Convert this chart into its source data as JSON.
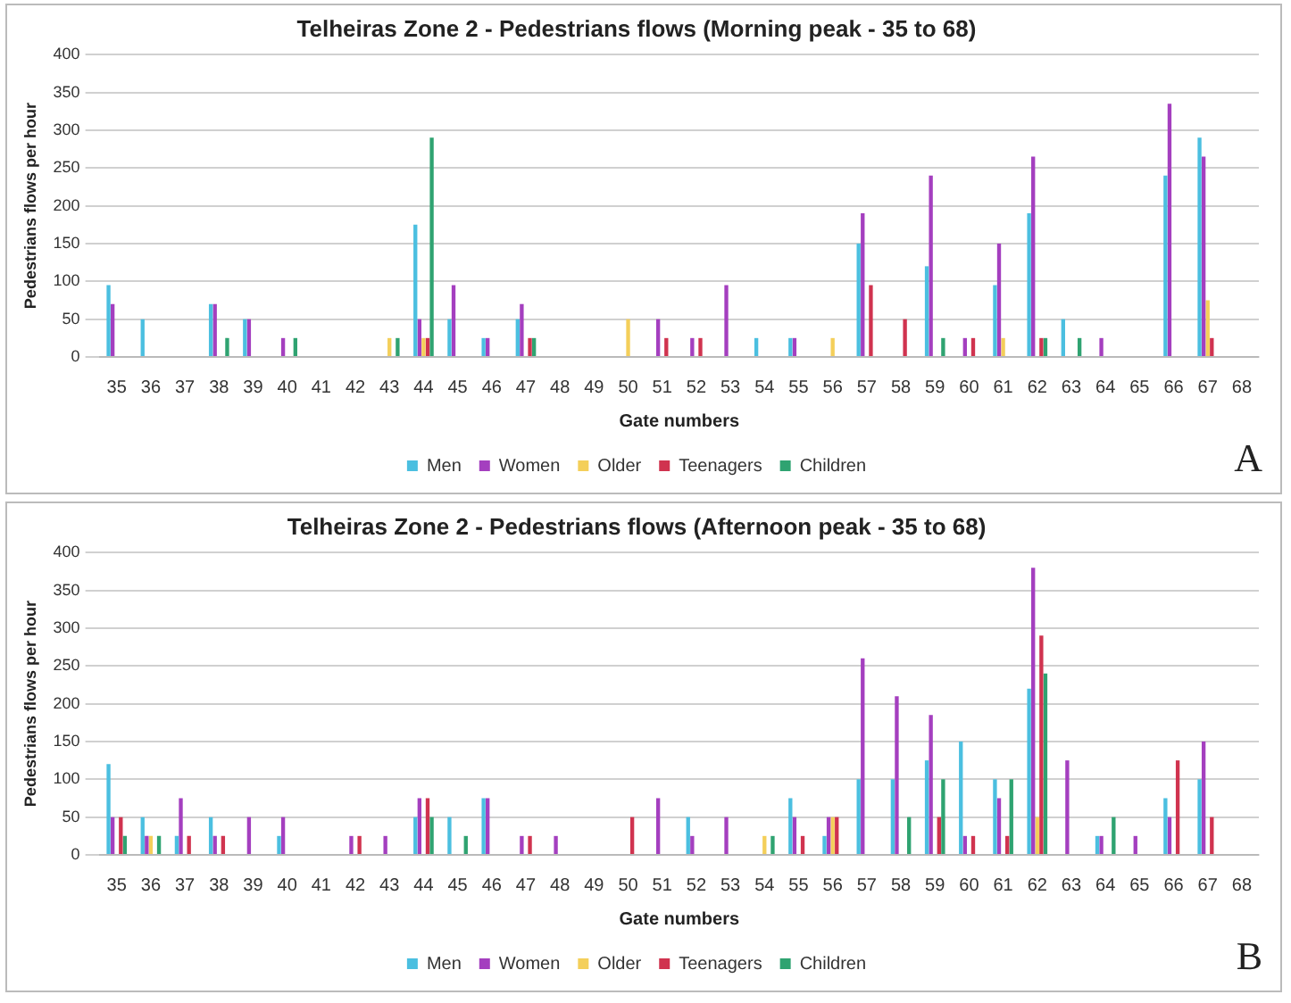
{
  "chart_data": [
    {
      "type": "bar",
      "title": "Telheiras Zone 2 - Pedestrians flows (Morning peak - 35 to 68)",
      "xlabel": "Gate numbers",
      "ylabel": "Pedestrians flows per hour",
      "annotations": [
        "A"
      ],
      "categories": [
        "35",
        "36",
        "37",
        "38",
        "39",
        "40",
        "41",
        "42",
        "43",
        "44",
        "45",
        "46",
        "47",
        "48",
        "49",
        "50",
        "51",
        "52",
        "53",
        "54",
        "55",
        "56",
        "57",
        "58",
        "59",
        "60",
        "61",
        "62",
        "63",
        "64",
        "65",
        "66",
        "67",
        "68"
      ],
      "series": [
        {
          "name": "Men",
          "color": "#4bbfe0",
          "values": [
            95,
            50,
            0,
            70,
            50,
            0,
            0,
            0,
            0,
            175,
            50,
            25,
            50,
            0,
            0,
            0,
            0,
            0,
            0,
            25,
            25,
            0,
            150,
            0,
            120,
            0,
            95,
            190,
            50,
            0,
            0,
            240,
            290,
            0
          ]
        },
        {
          "name": "Women",
          "color": "#a43fbf",
          "values": [
            70,
            0,
            0,
            70,
            50,
            25,
            0,
            0,
            0,
            50,
            95,
            25,
            70,
            0,
            0,
            0,
            50,
            25,
            95,
            0,
            25,
            0,
            190,
            0,
            240,
            25,
            150,
            265,
            0,
            25,
            0,
            335,
            265,
            0
          ]
        },
        {
          "name": "Older",
          "color": "#f4cf5a",
          "values": [
            0,
            0,
            0,
            0,
            0,
            0,
            0,
            0,
            25,
            25,
            0,
            0,
            0,
            0,
            0,
            50,
            0,
            0,
            0,
            0,
            0,
            25,
            0,
            0,
            0,
            0,
            25,
            0,
            0,
            0,
            0,
            0,
            75,
            0
          ]
        },
        {
          "name": "Teenagers",
          "color": "#d0334f",
          "values": [
            0,
            0,
            0,
            0,
            0,
            0,
            0,
            0,
            0,
            25,
            0,
            0,
            25,
            0,
            0,
            0,
            25,
            25,
            0,
            0,
            0,
            0,
            95,
            50,
            0,
            25,
            0,
            25,
            0,
            0,
            0,
            0,
            25,
            0
          ]
        },
        {
          "name": "Children",
          "color": "#2fa371",
          "values": [
            0,
            0,
            0,
            25,
            0,
            25,
            0,
            0,
            25,
            290,
            0,
            0,
            25,
            0,
            0,
            0,
            0,
            0,
            0,
            0,
            0,
            0,
            0,
            0,
            25,
            0,
            0,
            25,
            25,
            0,
            0,
            0,
            0,
            0
          ]
        }
      ],
      "ylim": [
        0,
        400
      ],
      "yticks": [
        0,
        50,
        100,
        150,
        200,
        250,
        300,
        350,
        400
      ],
      "grid": "y",
      "legend": "bottom"
    },
    {
      "type": "bar",
      "title": "Telheiras Zone 2 - Pedestrians flows (Afternoon peak - 35 to 68)",
      "xlabel": "Gate numbers",
      "ylabel": "Pedestrians flows per hour",
      "annotations": [
        "B"
      ],
      "categories": [
        "35",
        "36",
        "37",
        "38",
        "39",
        "40",
        "41",
        "42",
        "43",
        "44",
        "45",
        "46",
        "47",
        "48",
        "49",
        "50",
        "51",
        "52",
        "53",
        "54",
        "55",
        "56",
        "57",
        "58",
        "59",
        "60",
        "61",
        "62",
        "63",
        "64",
        "65",
        "66",
        "67",
        "68"
      ],
      "series": [
        {
          "name": "Men",
          "color": "#4bbfe0",
          "values": [
            120,
            50,
            25,
            50,
            0,
            25,
            0,
            0,
            0,
            50,
            50,
            75,
            0,
            0,
            0,
            0,
            0,
            50,
            0,
            0,
            75,
            25,
            100,
            100,
            125,
            150,
            100,
            220,
            0,
            25,
            0,
            75,
            100,
            0
          ]
        },
        {
          "name": "Women",
          "color": "#a43fbf",
          "values": [
            50,
            25,
            75,
            25,
            50,
            50,
            0,
            25,
            25,
            75,
            0,
            75,
            25,
            25,
            0,
            0,
            75,
            25,
            50,
            0,
            50,
            50,
            260,
            210,
            185,
            25,
            75,
            380,
            125,
            25,
            25,
            50,
            150,
            0
          ]
        },
        {
          "name": "Older",
          "color": "#f4cf5a",
          "values": [
            0,
            25,
            0,
            0,
            0,
            0,
            0,
            0,
            0,
            0,
            0,
            0,
            0,
            0,
            0,
            0,
            0,
            0,
            0,
            25,
            0,
            50,
            0,
            0,
            0,
            0,
            0,
            50,
            0,
            0,
            0,
            0,
            0,
            0
          ]
        },
        {
          "name": "Teenagers",
          "color": "#d0334f",
          "values": [
            50,
            0,
            25,
            25,
            0,
            0,
            0,
            25,
            0,
            75,
            0,
            0,
            25,
            0,
            0,
            50,
            0,
            0,
            0,
            0,
            25,
            50,
            0,
            0,
            50,
            25,
            25,
            290,
            0,
            0,
            0,
            125,
            50,
            0
          ]
        },
        {
          "name": "Children",
          "color": "#2fa371",
          "values": [
            25,
            25,
            0,
            0,
            0,
            0,
            0,
            0,
            0,
            50,
            25,
            0,
            0,
            0,
            0,
            0,
            0,
            0,
            0,
            25,
            0,
            0,
            0,
            50,
            100,
            0,
            100,
            240,
            0,
            50,
            0,
            0,
            0,
            0
          ]
        }
      ],
      "ylim": [
        0,
        400
      ],
      "yticks": [
        0,
        50,
        100,
        150,
        200,
        250,
        300,
        350,
        400
      ],
      "grid": "y",
      "legend": "bottom"
    }
  ]
}
